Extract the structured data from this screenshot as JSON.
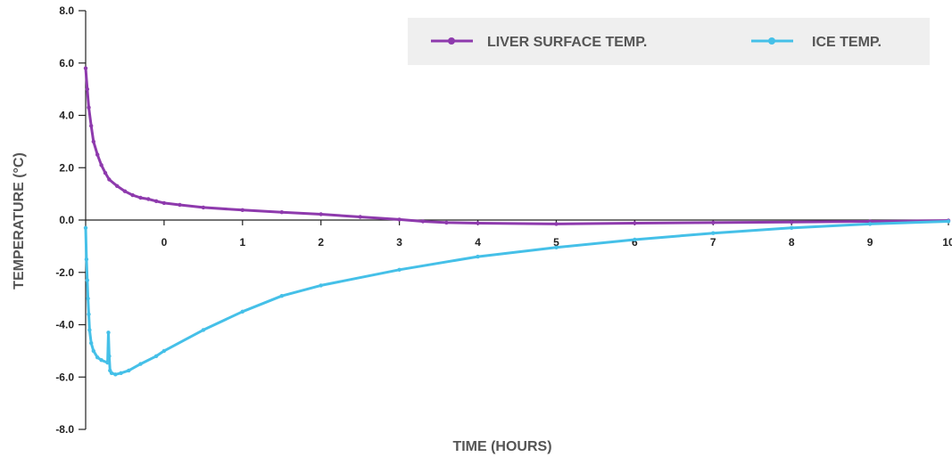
{
  "chart_data": {
    "type": "line",
    "xlabel": "TIME (HOURS)",
    "ylabel": "TEMPERATURE (°C)",
    "xlim": [
      -1,
      10
    ],
    "ylim": [
      -8,
      8
    ],
    "x_ticks": [
      0,
      1,
      2,
      3,
      4,
      5,
      6,
      7,
      8,
      9,
      10
    ],
    "y_ticks": [
      8,
      6,
      4,
      2,
      0,
      -2,
      -4,
      -6,
      -8
    ],
    "x_tick_labels": [
      "0",
      "1",
      "2",
      "3",
      "4",
      "5",
      "6",
      "7",
      "8",
      "9",
      "10"
    ],
    "y_tick_labels": [
      "8.0",
      "6.0",
      "4.0",
      "2.0",
      "0.0",
      "-2.0",
      "-4.0",
      "-6.0",
      "-8.0"
    ],
    "legend_position": "top-right",
    "grid": false,
    "series": [
      {
        "name": "LIVER SURFACE TEMP.",
        "color": "#8e3aad",
        "x": [
          -1.0,
          -0.98,
          -0.96,
          -0.93,
          -0.9,
          -0.85,
          -0.8,
          -0.75,
          -0.7,
          -0.6,
          -0.5,
          -0.4,
          -0.3,
          -0.2,
          -0.1,
          0.0,
          0.2,
          0.5,
          1.0,
          1.5,
          2.0,
          2.5,
          3.0,
          3.3,
          3.6,
          4.0,
          5.0,
          6.0,
          7.0,
          8.0,
          9.0,
          10.0
        ],
        "y": [
          5.8,
          5.0,
          4.3,
          3.6,
          3.0,
          2.5,
          2.1,
          1.8,
          1.55,
          1.3,
          1.1,
          0.95,
          0.85,
          0.8,
          0.72,
          0.65,
          0.58,
          0.48,
          0.38,
          0.3,
          0.22,
          0.12,
          0.02,
          -0.05,
          -0.1,
          -0.12,
          -0.15,
          -0.12,
          -0.1,
          -0.08,
          -0.05,
          -0.02
        ]
      },
      {
        "name": "ICE TEMP.",
        "color": "#45c0e8",
        "x": [
          -1.0,
          -0.99,
          -0.98,
          -0.97,
          -0.96,
          -0.95,
          -0.93,
          -0.9,
          -0.85,
          -0.8,
          -0.72,
          -0.71,
          -0.7,
          -0.69,
          -0.67,
          -0.62,
          -0.55,
          -0.45,
          -0.3,
          -0.1,
          0.0,
          0.5,
          1.0,
          1.5,
          2.0,
          3.0,
          4.0,
          5.0,
          6.0,
          7.0,
          8.0,
          9.0,
          10.0
        ],
        "y": [
          -0.3,
          -1.5,
          -2.3,
          -3.0,
          -3.6,
          -4.2,
          -4.7,
          -5.0,
          -5.25,
          -5.35,
          -5.45,
          -4.3,
          -5.2,
          -5.75,
          -5.85,
          -5.9,
          -5.85,
          -5.75,
          -5.5,
          -5.2,
          -5.0,
          -4.2,
          -3.5,
          -2.9,
          -2.5,
          -1.9,
          -1.4,
          -1.05,
          -0.75,
          -0.5,
          -0.3,
          -0.15,
          -0.05
        ]
      }
    ]
  }
}
